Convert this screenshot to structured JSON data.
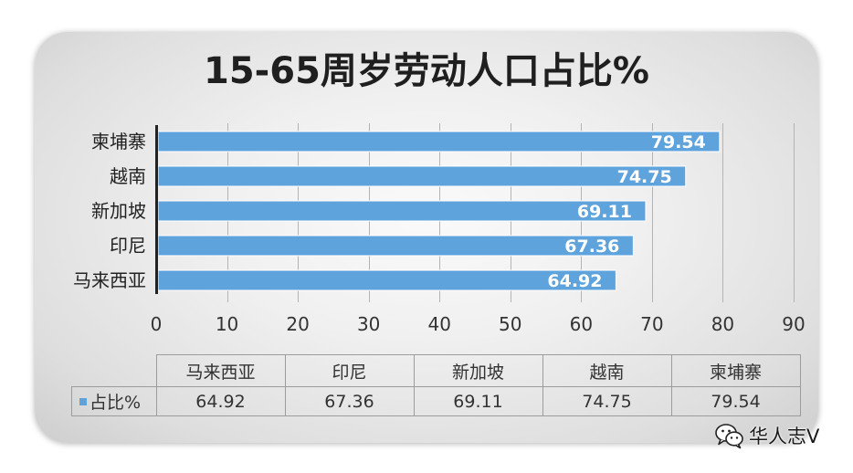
{
  "chart_data": {
    "type": "bar",
    "orientation": "horizontal",
    "title": "15-65周岁劳动人口占比%",
    "categories": [
      "马来西亚",
      "印尼",
      "新加坡",
      "越南",
      "柬埔寨"
    ],
    "series": [
      {
        "name": "占比%",
        "values": [
          64.92,
          67.36,
          69.11,
          74.75,
          79.54
        ],
        "color": "#5ea3dc"
      }
    ],
    "xlim": [
      0,
      90
    ],
    "xticks": [
      0,
      10,
      20,
      30,
      40,
      50,
      60,
      70,
      80,
      90
    ],
    "grid": true,
    "data_labels": true,
    "data_table": true,
    "legend": "data-table"
  },
  "watermark": {
    "icon": "wechat-icon",
    "text": "华人志V"
  }
}
